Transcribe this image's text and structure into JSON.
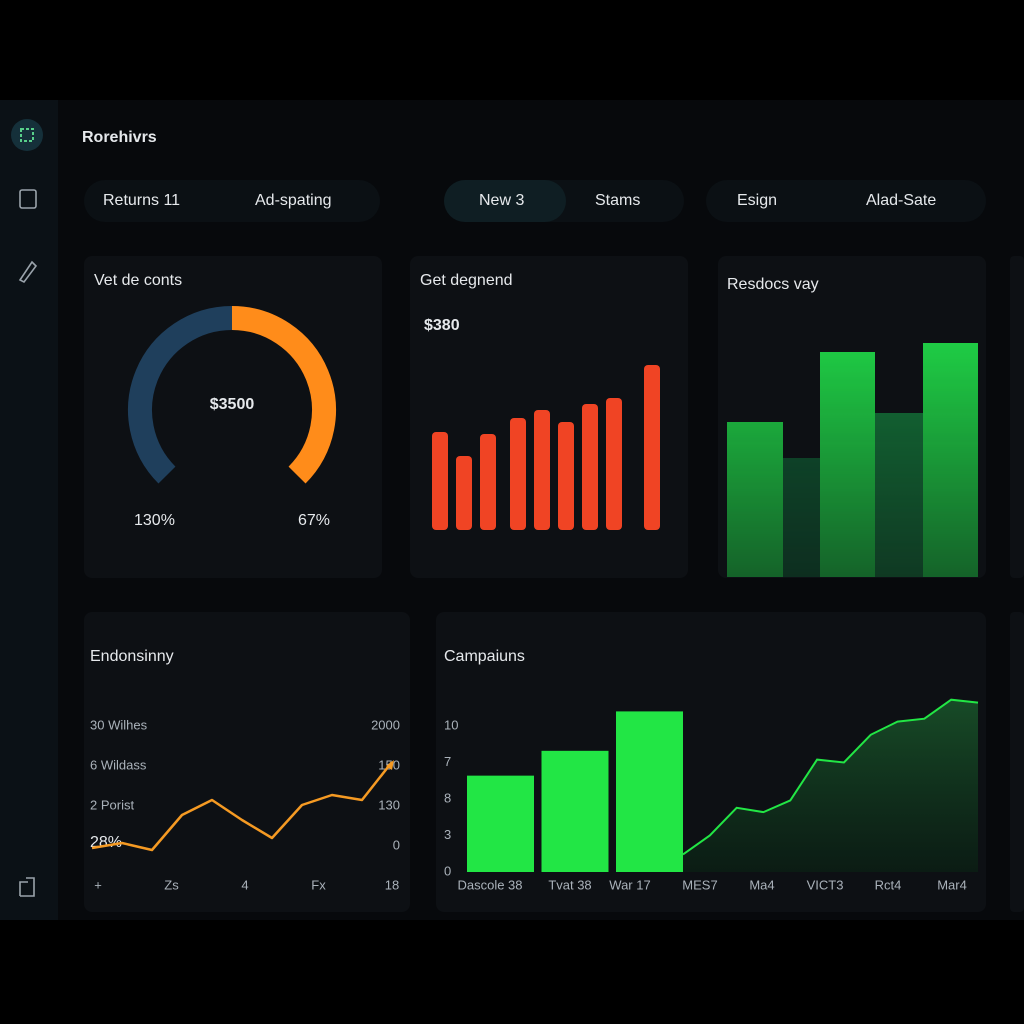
{
  "header": {
    "title": "Rorehivrs"
  },
  "tabs": [
    [
      "Returns 11",
      "Ad-spating"
    ],
    [
      "New 3",
      "Stams"
    ],
    [
      "Esign",
      "Alad-Sate"
    ]
  ],
  "cards": {
    "gauge": {
      "title": "Vet de conts",
      "center_label": "$3500",
      "left_label": "130%",
      "right_label": "67%",
      "value": 50,
      "range": [
        0,
        100
      ],
      "colors": [
        "#1f3f5c",
        "#ff8c1a"
      ]
    },
    "red_bars": {
      "title": "Get degnend",
      "amount": "$380",
      "values": [
        98,
        74,
        96,
        112,
        120,
        108,
        126,
        132,
        165
      ],
      "color": "#f04424"
    },
    "green_bars": {
      "title": "Resdocs vay",
      "values": [
        155,
        119,
        225,
        164,
        234
      ],
      "colors": [
        "#21e04a",
        "#0f5c32",
        "#21e04a",
        "#14783a",
        "#21e04a"
      ]
    },
    "endonsinny": {
      "title": "Endonsinny",
      "left_labels": [
        "30 Wilhes",
        "6 Wildass",
        "2 Porist"
      ],
      "right_labels": [
        "2000",
        "150",
        "130",
        "0"
      ],
      "big_label": "28%",
      "x_labels": [
        "+",
        "Zs",
        "4",
        "Fx",
        "18"
      ],
      "line": [
        32,
        37,
        30,
        65,
        80,
        60,
        42,
        75,
        85,
        80,
        118
      ],
      "color": "#f59a23"
    },
    "campaigns": {
      "title": "Campaiuns",
      "y_labels": [
        "10",
        "7",
        "8",
        "3",
        "0"
      ],
      "x_labels": [
        "Dascole 38",
        "Tvat 38",
        "War 17",
        "MES7",
        "Ma4",
        "VICT3",
        "Rct4",
        "Mar4"
      ],
      "bars": [
        6.6,
        8.3,
        11.0
      ],
      "line": [
        1.2,
        2.5,
        4.4,
        4.1,
        4.9,
        7.7,
        7.5,
        9.4,
        10.3,
        10.5,
        11.8,
        11.6
      ],
      "color": "#22e645"
    }
  }
}
